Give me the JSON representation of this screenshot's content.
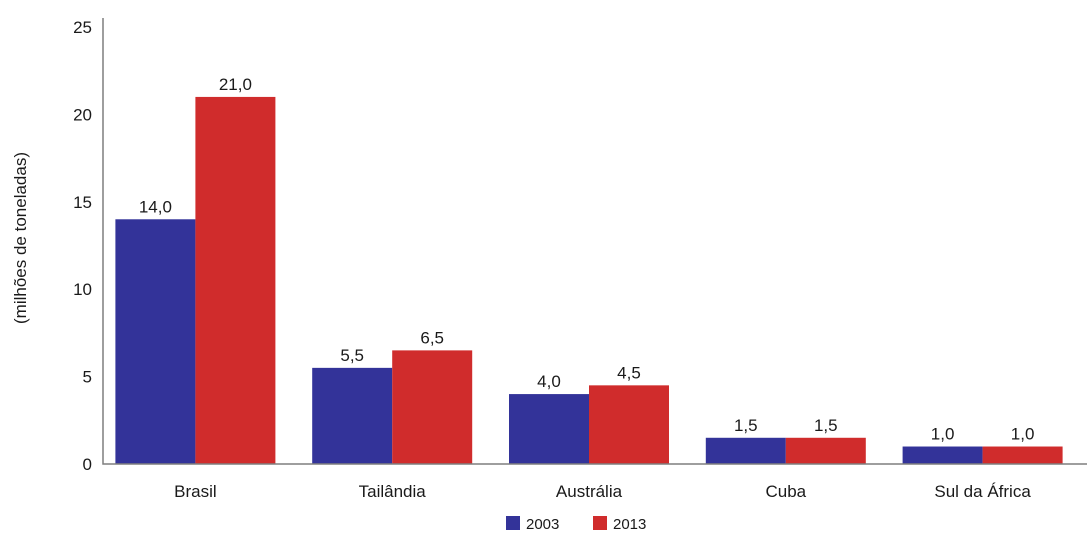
{
  "chart_data": {
    "type": "bar",
    "title": "",
    "xlabel": "",
    "ylabel": "(milhões de toneladas)",
    "ylim": [
      0,
      25
    ],
    "yticks": [
      0,
      5,
      10,
      15,
      20,
      25
    ],
    "categories": [
      "Brasil",
      "Tailândia",
      "Austrália",
      "Cuba",
      "Sul da África"
    ],
    "series": [
      {
        "name": "2003",
        "color": "#333399",
        "values": [
          14.0,
          5.5,
          4.0,
          1.5,
          1.0
        ],
        "labels": [
          "14,0",
          "5,5",
          "4,0",
          "1,5",
          "1,0"
        ]
      },
      {
        "name": "2013",
        "color": "#d02c2c",
        "values": [
          21.0,
          6.5,
          4.5,
          1.5,
          1.0
        ],
        "labels": [
          "21,0",
          "6,5",
          "4,5",
          "1,5",
          "1,0"
        ]
      }
    ],
    "grid": false,
    "legend": "bottom"
  }
}
